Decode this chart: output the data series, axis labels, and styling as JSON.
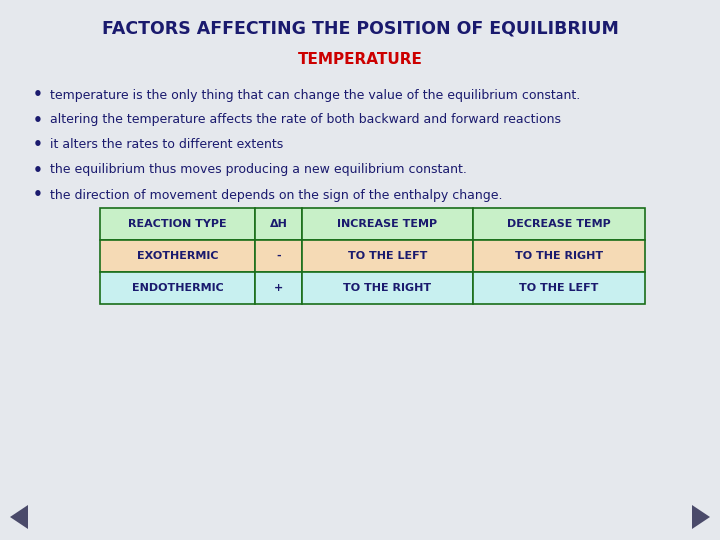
{
  "title": "FACTORS AFFECTING THE POSITION OF EQUILIBRIUM",
  "subtitle": "TEMPERATURE",
  "title_color": "#1a1a6e",
  "subtitle_color": "#cc0000",
  "bullet_color": "#1a1a6e",
  "bullets": [
    "temperature is the only thing that can change the value of the equilibrium constant.",
    "altering the temperature affects the rate of both backward and forward reactions",
    "it alters the rates to different extents",
    "the equilibrium thus moves producing a new equilibrium constant.",
    "the direction of movement depends on the sign of the enthalpy change."
  ],
  "table_headers": [
    "REACTION TYPE",
    "ΔH",
    "INCREASE TEMP",
    "DECREASE TEMP"
  ],
  "table_rows": [
    [
      "EXOTHERMIC",
      "-",
      "TO THE LEFT",
      "TO THE RIGHT"
    ],
    [
      "ENDOTHERMIC",
      "+",
      "TO THE RIGHT",
      "TO THE LEFT"
    ]
  ],
  "table_header_bg": "#c8f0c8",
  "table_row1_bg": "#f5dab5",
  "table_row2_bg": "#c8f0f0",
  "table_border_color": "#1a6e1a",
  "table_text_color": "#1a1a6e",
  "bg_color_light": "#e8ecf0",
  "arrow_color": "#4a4a6a",
  "figsize": [
    7.2,
    5.4
  ],
  "dpi": 100
}
